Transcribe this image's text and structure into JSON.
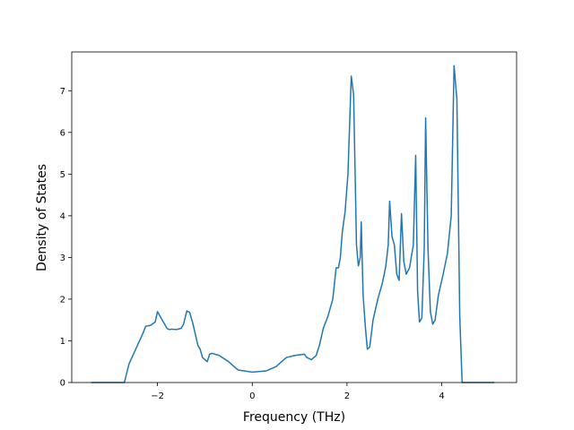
{
  "chart_data": {
    "type": "line",
    "xlabel": "Frequency (THz)",
    "ylabel": "Density of States",
    "xlim": [
      -3.81,
      5.58
    ],
    "ylim": [
      0,
      7.93
    ],
    "xticks": [
      {
        "value": -2,
        "label": "−2"
      },
      0,
      2,
      4
    ],
    "yticks": [
      0,
      1,
      2,
      3,
      4,
      5,
      6,
      7
    ],
    "grid": false,
    "series": [
      {
        "color": "#1f77b4",
        "x": [
          -3.4,
          -2.7,
          -2.6,
          -2.5,
          -2.4,
          -2.3,
          -2.25,
          -2.15,
          -2.05,
          -2.0,
          -1.9,
          -1.8,
          -1.75,
          -1.7,
          -1.6,
          -1.5,
          -1.45,
          -1.38,
          -1.32,
          -1.25,
          -1.15,
          -1.1,
          -1.05,
          -1.0,
          -0.95,
          -0.9,
          -0.85,
          -0.7,
          -0.5,
          -0.3,
          0,
          0.3,
          0.5,
          0.72,
          0.9,
          1.1,
          1.15,
          1.25,
          1.35,
          1.42,
          1.5,
          1.6,
          1.7,
          1.77,
          1.82,
          1.86,
          1.9,
          1.96,
          2.02,
          2.09,
          2.14,
          2.2,
          2.24,
          2.28,
          2.3,
          2.34,
          2.39,
          2.43,
          2.48,
          2.55,
          2.65,
          2.75,
          2.82,
          2.87,
          2.9,
          2.95,
          3.0,
          3.05,
          3.1,
          3.15,
          3.2,
          3.25,
          3.32,
          3.4,
          3.45,
          3.49,
          3.53,
          3.58,
          3.63,
          3.66,
          3.71,
          3.76,
          3.81,
          3.86,
          3.93,
          4.03,
          4.12,
          4.2,
          4.26,
          4.32,
          4.38,
          4.43,
          5.11
        ],
        "values": [
          0,
          0,
          0.45,
          0.7,
          0.95,
          1.2,
          1.35,
          1.37,
          1.45,
          1.7,
          1.5,
          1.3,
          1.27,
          1.28,
          1.27,
          1.3,
          1.4,
          1.72,
          1.68,
          1.4,
          0.9,
          0.8,
          0.6,
          0.55,
          0.5,
          0.68,
          0.7,
          0.65,
          0.5,
          0.3,
          0.25,
          0.28,
          0.38,
          0.6,
          0.65,
          0.68,
          0.6,
          0.55,
          0.65,
          0.9,
          1.3,
          1.6,
          2.0,
          2.75,
          2.75,
          3.0,
          3.6,
          4.1,
          5.0,
          7.35,
          6.9,
          3.3,
          2.8,
          3.0,
          3.85,
          2.1,
          1.3,
          0.8,
          0.85,
          1.5,
          2.0,
          2.4,
          2.8,
          3.3,
          4.35,
          3.5,
          3.3,
          2.6,
          2.45,
          4.05,
          2.9,
          2.6,
          2.75,
          3.3,
          5.45,
          2.2,
          1.45,
          1.55,
          3.2,
          6.35,
          3.2,
          1.7,
          1.4,
          1.5,
          2.1,
          2.6,
          3.1,
          4.0,
          7.6,
          6.8,
          1.6,
          0,
          0
        ]
      }
    ]
  }
}
